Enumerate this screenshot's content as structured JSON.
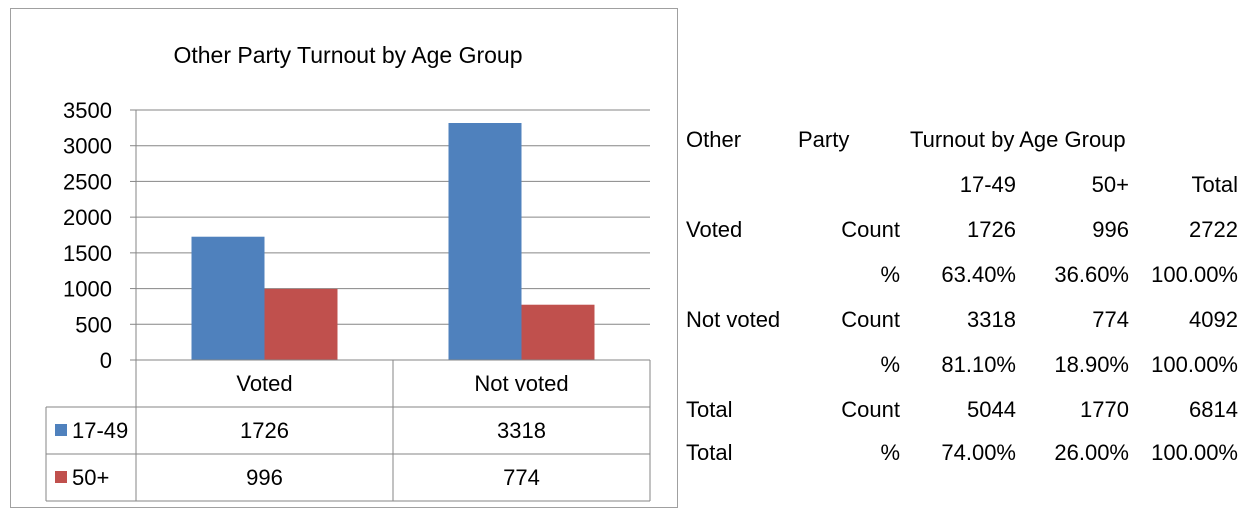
{
  "chart_data": {
    "type": "bar",
    "title": "Other Party Turnout by Age Group",
    "categories": [
      "Voted",
      "Not voted"
    ],
    "series": [
      {
        "name": "17-49",
        "values": [
          1726,
          3318
        ]
      },
      {
        "name": "50+",
        "values": [
          996,
          774
        ]
      }
    ],
    "ylim": [
      0,
      3500
    ],
    "yticks": [
      "0",
      "500",
      "1000",
      "1500",
      "2000",
      "2500",
      "3000",
      "3500"
    ],
    "grid": true,
    "legend": "data-table",
    "xlabel": "",
    "ylabel": ""
  },
  "colors": {
    "series_1": "#4f81bd",
    "series_2": "#c0504d",
    "grid": "#868686",
    "frame": "#a0a0a0"
  },
  "stats_table": {
    "header_words": [
      "Other",
      "Party",
      "Turnout by Age Group"
    ],
    "columns": [
      "17-49",
      "50+",
      "Total"
    ],
    "rows": [
      {
        "label": "Voted",
        "measure": "Count",
        "values": [
          "1726",
          "996",
          "2722"
        ]
      },
      {
        "label": "",
        "measure": "%",
        "values": [
          "63.40%",
          "36.60%",
          "100.00%"
        ]
      },
      {
        "label": "Not voted",
        "measure": "Count",
        "values": [
          "3318",
          "774",
          "4092"
        ]
      },
      {
        "label": "",
        "measure": "%",
        "values": [
          "81.10%",
          "18.90%",
          "100.00%"
        ]
      },
      {
        "label": "Total",
        "measure": "Count",
        "values": [
          "5044",
          "1770",
          "6814"
        ]
      },
      {
        "label": "Total",
        "measure": "%",
        "values": [
          "74.00%",
          "26.00%",
          "100.00%"
        ]
      }
    ]
  }
}
